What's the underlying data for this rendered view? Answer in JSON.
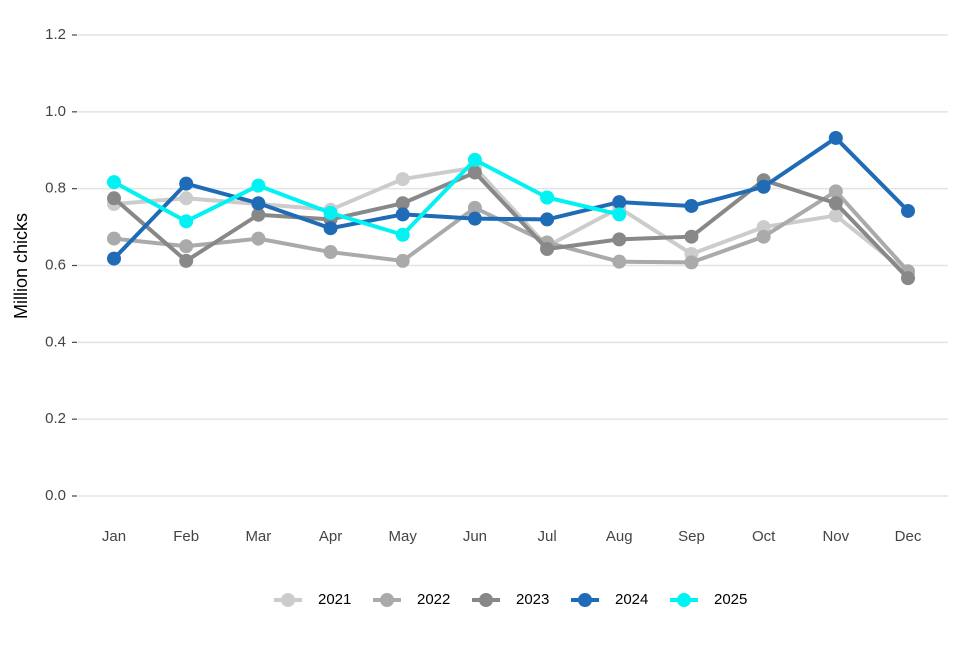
{
  "chart_data": {
    "type": "line",
    "ylabel": "Million chicks",
    "categories": [
      "Jan",
      "Feb",
      "Mar",
      "Apr",
      "May",
      "Jun",
      "Jul",
      "Aug",
      "Sep",
      "Oct",
      "Nov",
      "Dec"
    ],
    "series": [
      {
        "name": "2021",
        "color": "#cccccc",
        "values": [
          0.76,
          0.775,
          0.76,
          0.745,
          0.825,
          0.855,
          0.65,
          0.75,
          0.63,
          0.7,
          0.73,
          0.58
        ]
      },
      {
        "name": "2022",
        "color": "#aaaaaa",
        "values": [
          0.67,
          0.65,
          0.67,
          0.635,
          0.612,
          0.75,
          0.66,
          0.61,
          0.608,
          0.675,
          0.793,
          0.585
        ]
      },
      {
        "name": "2023",
        "color": "#888888",
        "values": [
          0.775,
          0.612,
          0.732,
          0.72,
          0.762,
          0.842,
          0.643,
          0.668,
          0.675,
          0.822,
          0.762,
          0.567
        ]
      },
      {
        "name": "2024",
        "color": "#1f6bb5",
        "values": [
          0.618,
          0.813,
          0.762,
          0.697,
          0.733,
          0.722,
          0.72,
          0.765,
          0.755,
          0.805,
          0.932,
          0.742
        ]
      },
      {
        "name": "2025",
        "color": "#00f2f2",
        "values": [
          0.817,
          0.715,
          0.808,
          0.737,
          0.68,
          0.875,
          0.777,
          0.733,
          null,
          null,
          null,
          null
        ]
      }
    ],
    "ylim": [
      0,
      1.2
    ],
    "yticks": [
      {
        "value": 0,
        "label": "0.0"
      },
      0.2,
      0.4,
      0.6,
      0.8,
      {
        "value": 1,
        "label": "1.0"
      },
      1.2
    ],
    "grid": true,
    "legend": "bottom"
  }
}
